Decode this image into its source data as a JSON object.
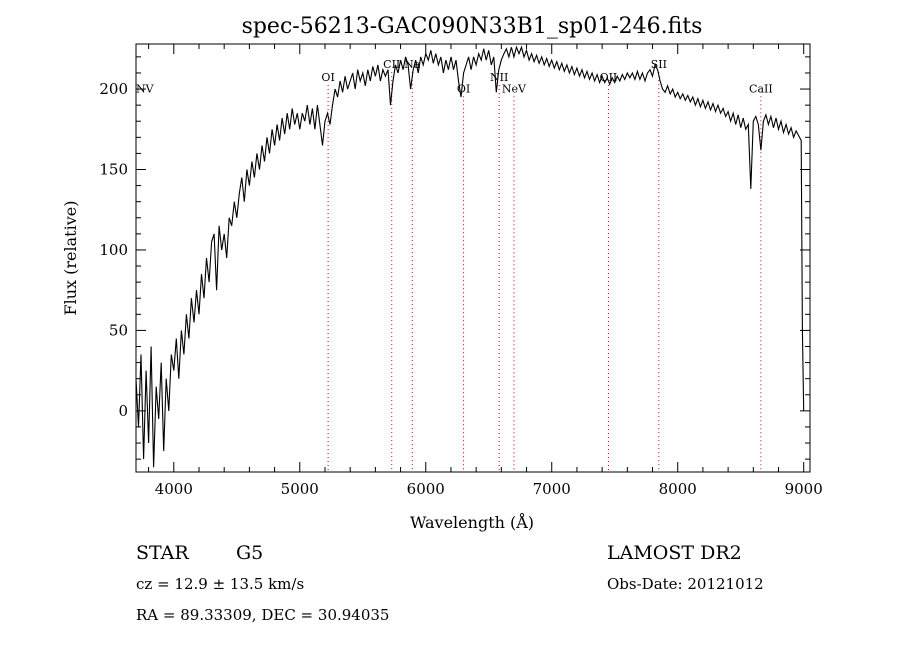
{
  "chart_data": {
    "type": "line",
    "title": "spec-56213-GAC090N33B1_sp01-246.fits",
    "xlabel": "Wavelength (Å)",
    "ylabel": "Flux (relative)",
    "xlim": [
      3700,
      9050
    ],
    "ylim": [
      -38,
      228
    ],
    "xticks": [
      4000,
      5000,
      6000,
      7000,
      8000,
      9000
    ],
    "yticks": [
      0,
      50,
      100,
      150,
      200
    ],
    "grid": false,
    "series": [
      {
        "values": [
          [
            3700,
            20
          ],
          [
            3720,
            -10
          ],
          [
            3740,
            35
          ],
          [
            3760,
            -30
          ],
          [
            3780,
            25
          ],
          [
            3800,
            -20
          ],
          [
            3820,
            40
          ],
          [
            3840,
            -35
          ],
          [
            3860,
            15
          ],
          [
            3880,
            -5
          ],
          [
            3900,
            30
          ],
          [
            3920,
            -25
          ],
          [
            3940,
            20
          ],
          [
            3960,
            0
          ],
          [
            3980,
            35
          ],
          [
            4000,
            25
          ],
          [
            4020,
            45
          ],
          [
            4040,
            20
          ],
          [
            4060,
            50
          ],
          [
            4080,
            35
          ],
          [
            4100,
            60
          ],
          [
            4120,
            45
          ],
          [
            4140,
            70
          ],
          [
            4160,
            55
          ],
          [
            4180,
            75
          ],
          [
            4200,
            60
          ],
          [
            4220,
            85
          ],
          [
            4240,
            70
          ],
          [
            4260,
            95
          ],
          [
            4280,
            80
          ],
          [
            4300,
            105
          ],
          [
            4320,
            110
          ],
          [
            4340,
            75
          ],
          [
            4360,
            115
          ],
          [
            4380,
            100
          ],
          [
            4400,
            110
          ],
          [
            4420,
            95
          ],
          [
            4440,
            120
          ],
          [
            4460,
            115
          ],
          [
            4480,
            130
          ],
          [
            4500,
            120
          ],
          [
            4520,
            135
          ],
          [
            4540,
            145
          ],
          [
            4560,
            130
          ],
          [
            4580,
            150
          ],
          [
            4600,
            140
          ],
          [
            4620,
            155
          ],
          [
            4640,
            145
          ],
          [
            4660,
            160
          ],
          [
            4680,
            150
          ],
          [
            4700,
            165
          ],
          [
            4720,
            155
          ],
          [
            4740,
            170
          ],
          [
            4760,
            160
          ],
          [
            4780,
            175
          ],
          [
            4800,
            165
          ],
          [
            4820,
            178
          ],
          [
            4840,
            168
          ],
          [
            4860,
            182
          ],
          [
            4880,
            172
          ],
          [
            4900,
            185
          ],
          [
            4920,
            175
          ],
          [
            4940,
            188
          ],
          [
            4960,
            178
          ],
          [
            4980,
            185
          ],
          [
            5000,
            175
          ],
          [
            5020,
            185
          ],
          [
            5040,
            180
          ],
          [
            5060,
            190
          ],
          [
            5080,
            178
          ],
          [
            5100,
            188
          ],
          [
            5120,
            175
          ],
          [
            5140,
            190
          ],
          [
            5160,
            178
          ],
          [
            5180,
            165
          ],
          [
            5200,
            180
          ],
          [
            5220,
            185
          ],
          [
            5240,
            178
          ],
          [
            5260,
            190
          ],
          [
            5280,
            200
          ],
          [
            5300,
            195
          ],
          [
            5320,
            205
          ],
          [
            5340,
            198
          ],
          [
            5360,
            208
          ],
          [
            5380,
            200
          ],
          [
            5400,
            205
          ],
          [
            5420,
            210
          ],
          [
            5440,
            200
          ],
          [
            5460,
            212
          ],
          [
            5480,
            205
          ],
          [
            5500,
            210
          ],
          [
            5520,
            202
          ],
          [
            5540,
            212
          ],
          [
            5560,
            205
          ],
          [
            5580,
            214
          ],
          [
            5600,
            208
          ],
          [
            5620,
            215
          ],
          [
            5640,
            205
          ],
          [
            5660,
            212
          ],
          [
            5680,
            208
          ],
          [
            5700,
            212
          ],
          [
            5720,
            190
          ],
          [
            5740,
            205
          ],
          [
            5760,
            215
          ],
          [
            5780,
            210
          ],
          [
            5800,
            218
          ],
          [
            5820,
            212
          ],
          [
            5840,
            220
          ],
          [
            5860,
            215
          ],
          [
            5880,
            200
          ],
          [
            5900,
            212
          ],
          [
            5920,
            218
          ],
          [
            5940,
            210
          ],
          [
            5960,
            220
          ],
          [
            5980,
            215
          ],
          [
            6000,
            222
          ],
          [
            6020,
            218
          ],
          [
            6040,
            224
          ],
          [
            6060,
            216
          ],
          [
            6080,
            222
          ],
          [
            6100,
            215
          ],
          [
            6120,
            220
          ],
          [
            6140,
            210
          ],
          [
            6160,
            218
          ],
          [
            6180,
            212
          ],
          [
            6200,
            220
          ],
          [
            6220,
            212
          ],
          [
            6240,
            218
          ],
          [
            6260,
            205
          ],
          [
            6280,
            195
          ],
          [
            6300,
            210
          ],
          [
            6320,
            215
          ],
          [
            6340,
            220
          ],
          [
            6360,
            212
          ],
          [
            6380,
            220
          ],
          [
            6400,
            215
          ],
          [
            6420,
            222
          ],
          [
            6440,
            218
          ],
          [
            6460,
            225
          ],
          [
            6480,
            218
          ],
          [
            6500,
            224
          ],
          [
            6520,
            215
          ],
          [
            6540,
            220
          ],
          [
            6560,
            198
          ],
          [
            6580,
            212
          ],
          [
            6600,
            218
          ],
          [
            6620,
            222
          ],
          [
            6640,
            225
          ],
          [
            6660,
            220
          ],
          [
            6680,
            226
          ],
          [
            6700,
            220
          ],
          [
            6720,
            226
          ],
          [
            6740,
            222
          ],
          [
            6760,
            226
          ],
          [
            6780,
            220
          ],
          [
            6800,
            224
          ],
          [
            6820,
            218
          ],
          [
            6840,
            222
          ],
          [
            6860,
            217
          ],
          [
            6880,
            221
          ],
          [
            6900,
            216
          ],
          [
            6920,
            220
          ],
          [
            6940,
            215
          ],
          [
            6960,
            219
          ],
          [
            6980,
            214
          ],
          [
            7000,
            218
          ],
          [
            7020,
            213
          ],
          [
            7040,
            217
          ],
          [
            7060,
            212
          ],
          [
            7080,
            216
          ],
          [
            7100,
            211
          ],
          [
            7120,
            215
          ],
          [
            7140,
            210
          ],
          [
            7160,
            214
          ],
          [
            7180,
            209
          ],
          [
            7200,
            213
          ],
          [
            7220,
            208
          ],
          [
            7240,
            212
          ],
          [
            7260,
            207
          ],
          [
            7280,
            211
          ],
          [
            7300,
            206
          ],
          [
            7320,
            210
          ],
          [
            7340,
            205
          ],
          [
            7360,
            209
          ],
          [
            7380,
            204
          ],
          [
            7400,
            208
          ],
          [
            7420,
            204
          ],
          [
            7440,
            207
          ],
          [
            7460,
            203
          ],
          [
            7480,
            207
          ],
          [
            7500,
            204
          ],
          [
            7520,
            208
          ],
          [
            7540,
            205
          ],
          [
            7560,
            209
          ],
          [
            7580,
            206
          ],
          [
            7600,
            210
          ],
          [
            7620,
            207
          ],
          [
            7640,
            210
          ],
          [
            7660,
            206
          ],
          [
            7680,
            211
          ],
          [
            7700,
            206
          ],
          [
            7720,
            210
          ],
          [
            7740,
            205
          ],
          [
            7760,
            210
          ],
          [
            7780,
            212
          ],
          [
            7800,
            208
          ],
          [
            7820,
            215
          ],
          [
            7840,
            212
          ],
          [
            7860,
            205
          ],
          [
            7880,
            200
          ],
          [
            7900,
            198
          ],
          [
            7920,
            202
          ],
          [
            7940,
            197
          ],
          [
            7960,
            200
          ],
          [
            7980,
            195
          ],
          [
            8000,
            198
          ],
          [
            8020,
            194
          ],
          [
            8040,
            197
          ],
          [
            8060,
            193
          ],
          [
            8080,
            196
          ],
          [
            8100,
            192
          ],
          [
            8120,
            195
          ],
          [
            8140,
            190
          ],
          [
            8160,
            194
          ],
          [
            8180,
            189
          ],
          [
            8200,
            193
          ],
          [
            8220,
            188
          ],
          [
            8240,
            192
          ],
          [
            8260,
            187
          ],
          [
            8280,
            191
          ],
          [
            8300,
            186
          ],
          [
            8320,
            190
          ],
          [
            8340,
            185
          ],
          [
            8360,
            188
          ],
          [
            8380,
            183
          ],
          [
            8400,
            186
          ],
          [
            8420,
            180
          ],
          [
            8440,
            185
          ],
          [
            8460,
            178
          ],
          [
            8480,
            184
          ],
          [
            8500,
            176
          ],
          [
            8520,
            182
          ],
          [
            8540,
            175
          ],
          [
            8560,
            178
          ],
          [
            8580,
            138
          ],
          [
            8600,
            180
          ],
          [
            8620,
            183
          ],
          [
            8640,
            178
          ],
          [
            8660,
            162
          ],
          [
            8680,
            180
          ],
          [
            8700,
            184
          ],
          [
            8720,
            178
          ],
          [
            8740,
            183
          ],
          [
            8760,
            176
          ],
          [
            8780,
            182
          ],
          [
            8800,
            175
          ],
          [
            8820,
            180
          ],
          [
            8840,
            173
          ],
          [
            8860,
            178
          ],
          [
            8880,
            172
          ],
          [
            8900,
            176
          ],
          [
            8920,
            170
          ],
          [
            8940,
            174
          ],
          [
            8960,
            171
          ],
          [
            8980,
            168
          ],
          [
            8990,
            50
          ],
          [
            9000,
            0
          ]
        ]
      }
    ],
    "lines": [
      {
        "name": "NV",
        "wavelength": 3730,
        "label_y": 198
      },
      {
        "name": "OI",
        "wavelength": 5225,
        "label_y": 205
      },
      {
        "name": "CII",
        "wavelength": 5730,
        "label_y": 213
      },
      {
        "name": "Na",
        "wavelength": 5893,
        "label_y": 213
      },
      {
        "name": "OI",
        "wavelength": 6300,
        "label_y": 198
      },
      {
        "name": "NII",
        "wavelength": 6583,
        "label_y": 205
      },
      {
        "name": "NeV",
        "wavelength": 6700,
        "label_y": 198
      },
      {
        "name": "OII",
        "wavelength": 7450,
        "label_y": 205
      },
      {
        "name": "SII",
        "wavelength": 7850,
        "label_y": 213
      },
      {
        "name": "CaII",
        "wavelength": 8660,
        "label_y": 198
      }
    ],
    "colors": {
      "line": "#000000",
      "marker": "#cc0000",
      "axes": "#000000"
    }
  },
  "info": {
    "class": "STAR",
    "subclass": "G5",
    "survey": "LAMOST DR2",
    "cz": "cz = 12.9 ± 13.5 km/s",
    "obs_date": "Obs-Date: 20121012",
    "radec": "RA =  89.33309, DEC =  30.94035"
  }
}
